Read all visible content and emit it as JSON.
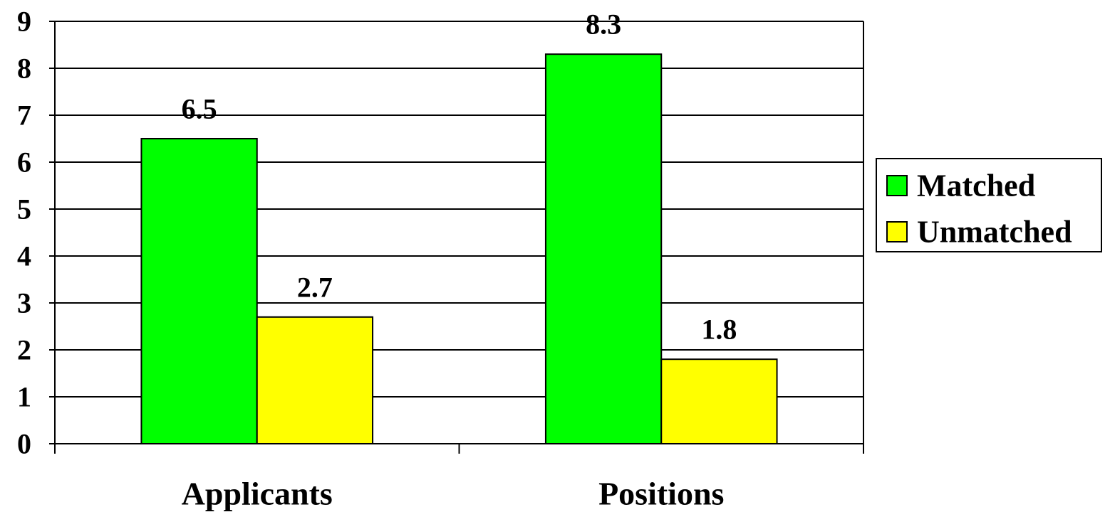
{
  "chart_data": {
    "type": "bar",
    "title": "",
    "xlabel": "",
    "ylabel": "",
    "categories": [
      "Applicants",
      "Positions"
    ],
    "series": [
      {
        "name": "Matched",
        "values": [
          6.5,
          8.3
        ],
        "color": "#00ff00"
      },
      {
        "name": "Unmatched",
        "values": [
          2.7,
          1.8
        ],
        "color": "#ffff00"
      }
    ],
    "ylim": [
      0,
      9
    ],
    "yticks": [
      "0",
      "1",
      "2",
      "3",
      "4",
      "5",
      "6",
      "7",
      "8",
      "9"
    ],
    "data_labels": [
      [
        "6.5",
        "8.3"
      ],
      [
        "2.7",
        "1.8"
      ]
    ],
    "grid": true,
    "legend": "right"
  }
}
